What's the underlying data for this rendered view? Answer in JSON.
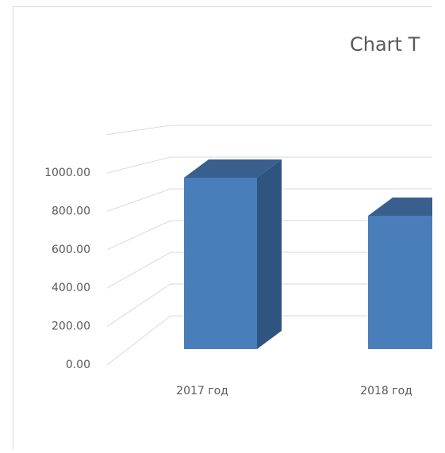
{
  "chart_data": {
    "type": "bar3d",
    "title": "Chart T",
    "categories": [
      "2017 год",
      "2018 год"
    ],
    "values": [
      900,
      700
    ],
    "color": "#4a7ebb",
    "side_color": "#2f5480",
    "top_color": "#385f8e",
    "ylim": [
      0,
      1200
    ],
    "yticks": [
      {
        "value": 0,
        "label": "0.00"
      },
      {
        "value": 200,
        "label": "200.00"
      },
      {
        "value": 400,
        "label": "400.00"
      },
      {
        "value": 600,
        "label": "600.00"
      },
      {
        "value": 800,
        "label": "800.00"
      },
      {
        "value": 1000,
        "label": "1000.00"
      }
    ],
    "grid": true
  }
}
